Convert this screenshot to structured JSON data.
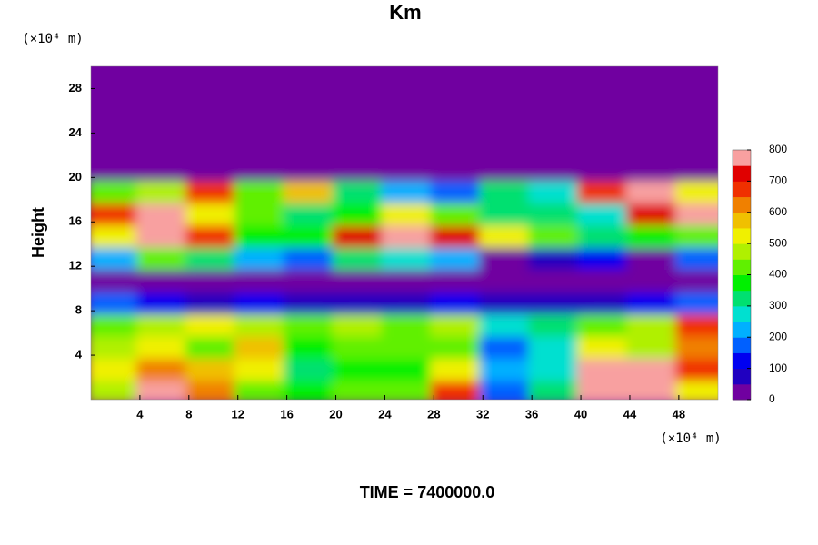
{
  "chart_data": {
    "type": "heatmap",
    "title": "Km",
    "ylabel": "Height",
    "x_unit": "(×10⁴ m)",
    "y_unit": "(×10⁴ m)",
    "footer": "TIME = 7400000.0",
    "xlim": [
      0,
      51.2
    ],
    "ylim": [
      0,
      30
    ],
    "xticks": [
      4,
      8,
      12,
      16,
      20,
      24,
      28,
      32,
      36,
      40,
      44,
      48
    ],
    "yticks": [
      4,
      8,
      12,
      16,
      20,
      24,
      28
    ],
    "zlim": [
      0,
      800
    ],
    "zticks": [
      0,
      100,
      200,
      300,
      400,
      500,
      600,
      700,
      800
    ],
    "colormap": [
      "#7000a0",
      "#2000c0",
      "#0000f0",
      "#0060ff",
      "#00b0ff",
      "#00e0d0",
      "#00e070",
      "#00f000",
      "#60f000",
      "#b0f000",
      "#f0f000",
      "#f0c000",
      "#f08000",
      "#f03000",
      "#e00000",
      "#f8a0a0"
    ],
    "x": [
      2,
      6,
      10,
      14,
      18,
      22,
      26,
      30,
      34,
      38,
      42,
      46,
      50
    ],
    "y": [
      1,
      3,
      5,
      7,
      9,
      11,
      13,
      15,
      17,
      19,
      21,
      23,
      25,
      27,
      29
    ],
    "z": [
      [
        450,
        750,
        600,
        400,
        350,
        400,
        400,
        650,
        150,
        300,
        800,
        800,
        500
      ],
      [
        500,
        600,
        550,
        500,
        300,
        350,
        350,
        500,
        200,
        250,
        750,
        800,
        650
      ],
      [
        450,
        500,
        400,
        550,
        350,
        400,
        400,
        400,
        150,
        250,
        500,
        450,
        600
      ],
      [
        400,
        450,
        500,
        450,
        400,
        450,
        400,
        450,
        250,
        300,
        400,
        450,
        650
      ],
      [
        150,
        100,
        80,
        120,
        60,
        80,
        60,
        100,
        50,
        60,
        80,
        100,
        150
      ],
      [
        0,
        0,
        20,
        0,
        0,
        0,
        0,
        0,
        0,
        0,
        0,
        0,
        20
      ],
      [
        200,
        400,
        300,
        200,
        150,
        300,
        250,
        200,
        0,
        50,
        100,
        0,
        150
      ],
      [
        500,
        800,
        650,
        350,
        350,
        700,
        750,
        700,
        500,
        400,
        300,
        350,
        400
      ],
      [
        650,
        800,
        500,
        400,
        300,
        350,
        500,
        400,
        300,
        300,
        250,
        700,
        750
      ],
      [
        400,
        450,
        650,
        400,
        550,
        300,
        200,
        150,
        300,
        250,
        650,
        750,
        500
      ],
      [
        0,
        0,
        0,
        0,
        0,
        0,
        0,
        0,
        0,
        0,
        0,
        0,
        0
      ],
      [
        0,
        0,
        0,
        0,
        0,
        0,
        0,
        0,
        0,
        0,
        0,
        0,
        0
      ],
      [
        0,
        0,
        0,
        0,
        0,
        0,
        0,
        0,
        0,
        0,
        0,
        0,
        0
      ],
      [
        0,
        0,
        0,
        0,
        0,
        0,
        0,
        0,
        0,
        0,
        0,
        0,
        0
      ],
      [
        0,
        0,
        0,
        0,
        0,
        0,
        0,
        0,
        0,
        0,
        0,
        0,
        0
      ]
    ]
  }
}
